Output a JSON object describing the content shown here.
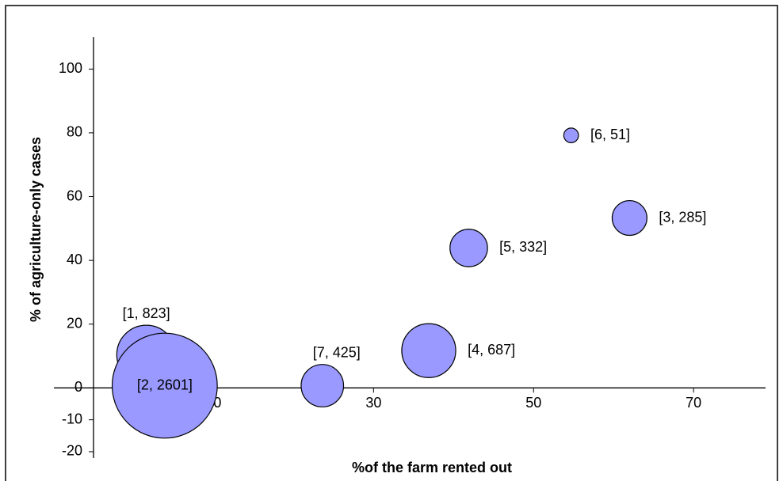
{
  "chart_data": {
    "type": "bubble",
    "x_label": "%of the farm rented out",
    "y_label": "% of agriculture-only cases",
    "x": [
      1.6,
      3.9,
      62,
      36.9,
      41.9,
      54.7,
      23.6
    ],
    "values": [
      10.4,
      0.7,
      53.3,
      11.7,
      43.9,
      79.2,
      0.7
    ],
    "sizes": [
      823,
      2601,
      285,
      687,
      332,
      51,
      425
    ],
    "labels": [
      "[1, 823]",
      "[2, 2601]",
      "[3, 285]",
      "[4, 687]",
      "[5, 332]",
      "[6, 51]",
      "[7, 425]"
    ],
    "color": "#9999ff",
    "xlim": [
      -5,
      79
    ],
    "xticks": [
      10,
      30,
      50,
      70
    ],
    "ylim": [
      -22,
      110
    ],
    "yticks": [
      -20,
      -10,
      0,
      20,
      40,
      60,
      80,
      100
    ]
  }
}
